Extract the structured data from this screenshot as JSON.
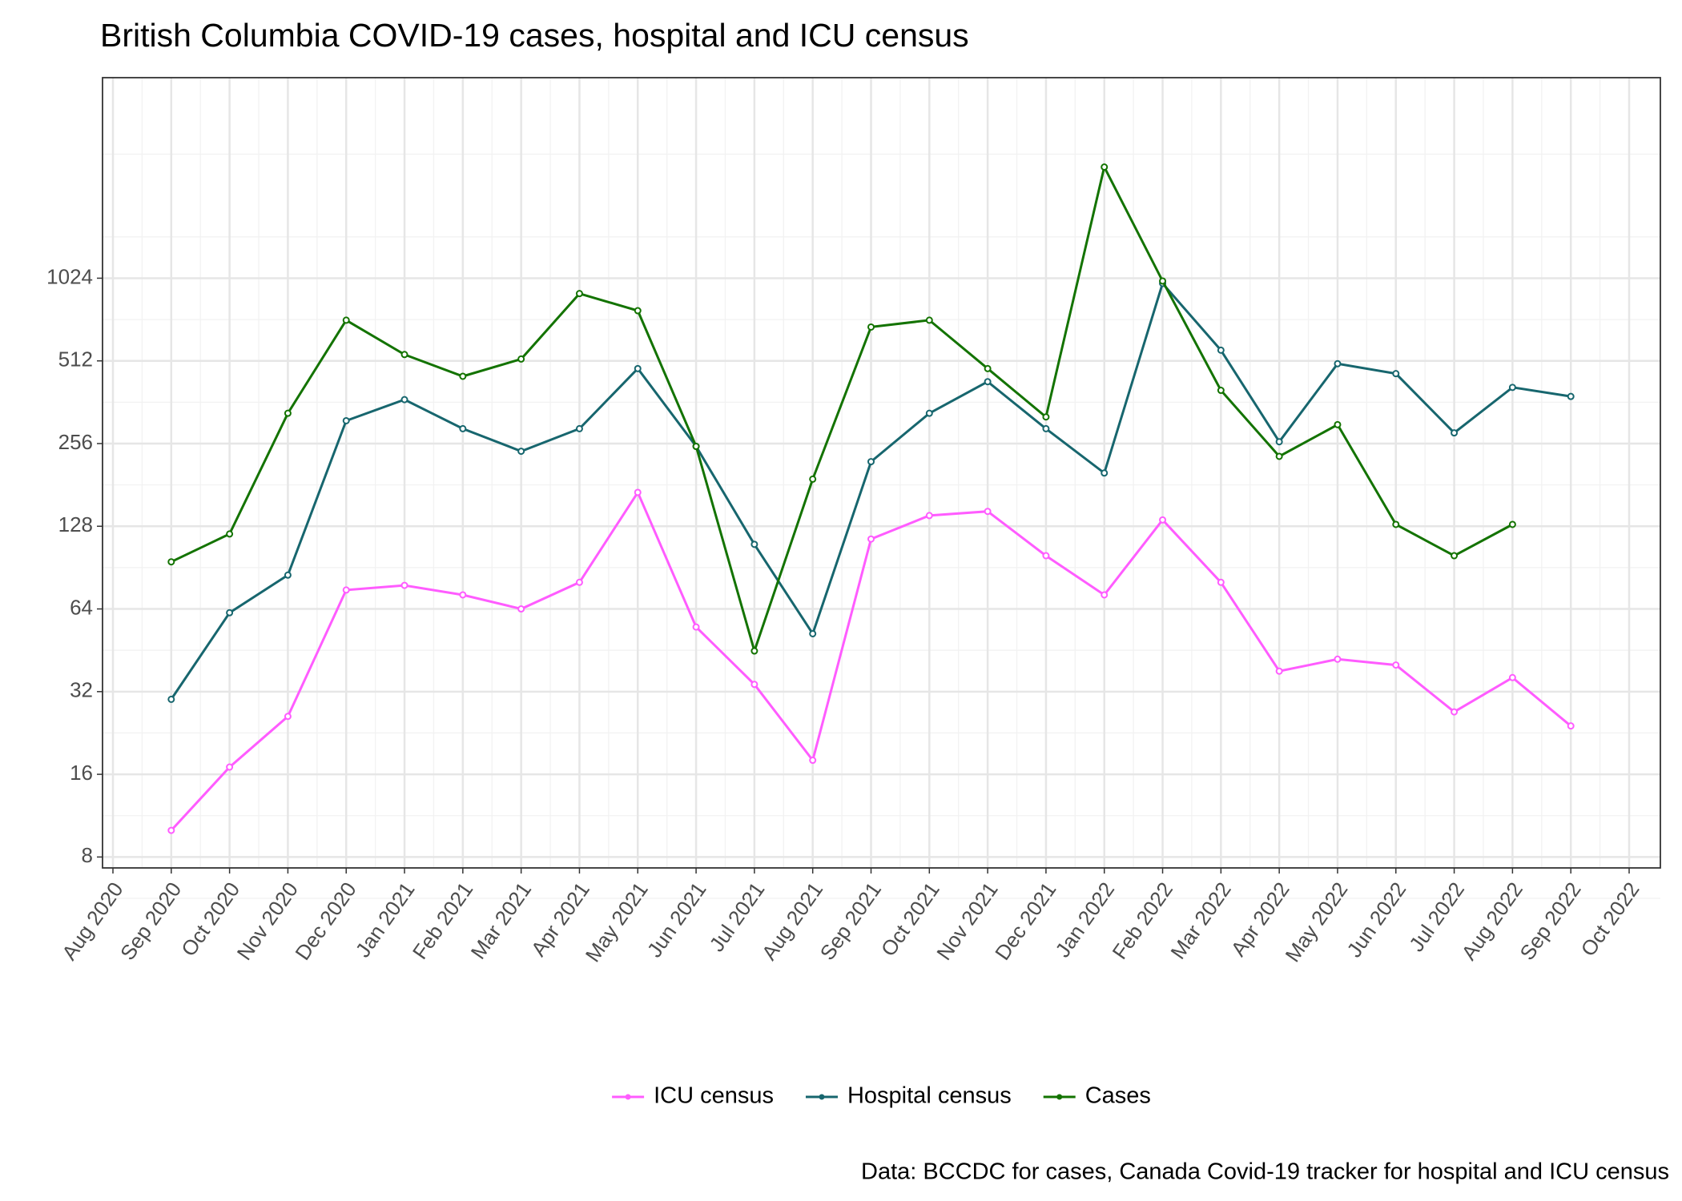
{
  "chart_data": {
    "type": "line",
    "title": "British Columbia COVID-19 cases, hospital and ICU census",
    "caption": "Data: BCCDC for cases, Canada Covid-19 tracker for hospital and ICU census",
    "x": [
      "Sep 2020",
      "Oct 2020",
      "Nov 2020",
      "Dec 2020",
      "Jan 2021",
      "Feb 2021",
      "Mar 2021",
      "Apr 2021",
      "May 2021",
      "Jun 2021",
      "Jul 2021",
      "Aug 2021",
      "Sep 2021",
      "Oct 2021",
      "Nov 2021",
      "Dec 2021",
      "Jan 2022",
      "Feb 2022",
      "Mar 2022",
      "Apr 2022",
      "May 2022",
      "Jun 2022",
      "Jul 2022",
      "Aug 2022",
      "Sep 2022"
    ],
    "series": [
      {
        "name": "ICU census",
        "color": "#ff5cff",
        "values": [
          10,
          17,
          26,
          75,
          78,
          72,
          64,
          80,
          170,
          55,
          34,
          18,
          115,
          140,
          145,
          100,
          72,
          135,
          80,
          38,
          42,
          40,
          27,
          36,
          24
        ]
      },
      {
        "name": "Hospital census",
        "color": "#17666e",
        "values": [
          30,
          62,
          85,
          310,
          370,
          290,
          240,
          290,
          480,
          250,
          110,
          52,
          220,
          330,
          430,
          290,
          200,
          980,
          560,
          260,
          500,
          460,
          280,
          410,
          380
        ]
      },
      {
        "name": "Cases",
        "color": "#137300",
        "values": [
          95,
          120,
          330,
          720,
          540,
          450,
          520,
          900,
          780,
          250,
          45,
          190,
          680,
          720,
          480,
          320,
          2600,
          1000,
          400,
          230,
          300,
          130,
          100,
          130,
          null
        ]
      }
    ],
    "xlim": [
      "Aug 2020",
      "Oct 2022"
    ],
    "xticks": [
      "Aug 2020",
      "Sep 2020",
      "Oct 2020",
      "Nov 2020",
      "Dec 2020",
      "Jan 2021",
      "Feb 2021",
      "Mar 2021",
      "Apr 2021",
      "May 2021",
      "Jun 2021",
      "Jul 2021",
      "Aug 2021",
      "Sep 2021",
      "Oct 2021",
      "Nov 2021",
      "Dec 2021",
      "Jan 2022",
      "Feb 2022",
      "Mar 2022",
      "Apr 2022",
      "May 2022",
      "Jun 2022",
      "Jul 2022",
      "Aug 2022",
      "Sep 2022",
      "Oct 2022"
    ],
    "ylim": [
      7.3,
      5500
    ],
    "yticks": [
      8,
      16,
      32,
      64,
      128,
      256,
      512,
      1024
    ],
    "yscale": "log",
    "grid": true,
    "legend": "bottom"
  }
}
